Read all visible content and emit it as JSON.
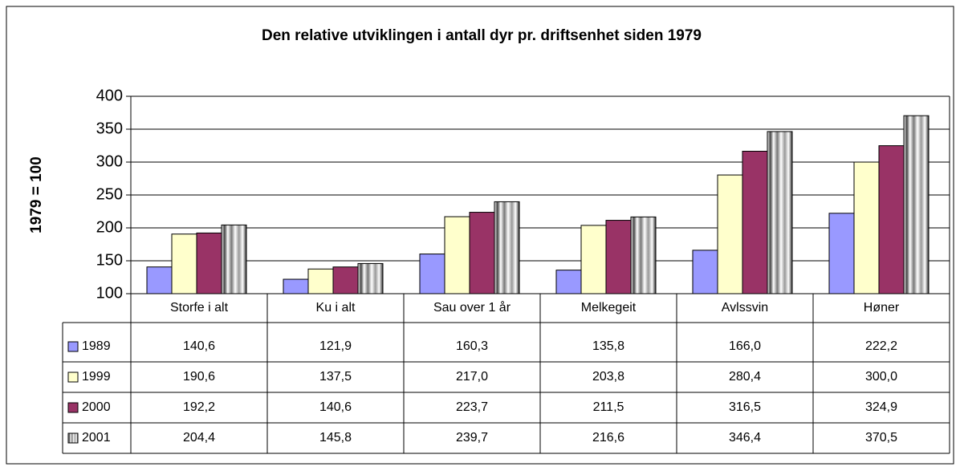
{
  "chart_data": {
    "type": "bar",
    "title": "Den relative utviklingen i antall dyr pr. driftsenhet siden 1979",
    "y_label": "1979 = 100",
    "categories": [
      "Storfe i alt",
      "Ku i alt",
      "Sau over 1 år",
      "Melkegeit",
      "Avlssvin",
      "Høner"
    ],
    "series": [
      {
        "name": "1989",
        "color": "#9999ff",
        "values": [
          140.6,
          121.9,
          160.3,
          135.8,
          166.0,
          222.2
        ],
        "value_labels": [
          "140,6",
          "121,9",
          "160,3",
          "135,8",
          "166,0",
          "222,2"
        ]
      },
      {
        "name": "1999",
        "color": "#ffffcc",
        "values": [
          190.6,
          137.5,
          217.0,
          203.8,
          280.4,
          300.0
        ],
        "value_labels": [
          "190,6",
          "137,5",
          "217,0",
          "203,8",
          "280,4",
          "300,0"
        ]
      },
      {
        "name": "2000",
        "color": "#993366",
        "values": [
          192.2,
          140.6,
          223.7,
          211.5,
          316.5,
          324.9
        ],
        "value_labels": [
          "192,2",
          "140,6",
          "223,7",
          "211,5",
          "316,5",
          "324,9"
        ]
      },
      {
        "name": "2001",
        "color": "#808080",
        "values": [
          204.4,
          145.8,
          239.7,
          216.6,
          346.4,
          370.5
        ],
        "value_labels": [
          "204,4",
          "145,8",
          "239,7",
          "216,6",
          "346,4",
          "370,5"
        ]
      }
    ],
    "ylim": [
      100,
      400
    ],
    "yticks": [
      100,
      150,
      200,
      250,
      300,
      350,
      400
    ],
    "grid": true
  }
}
